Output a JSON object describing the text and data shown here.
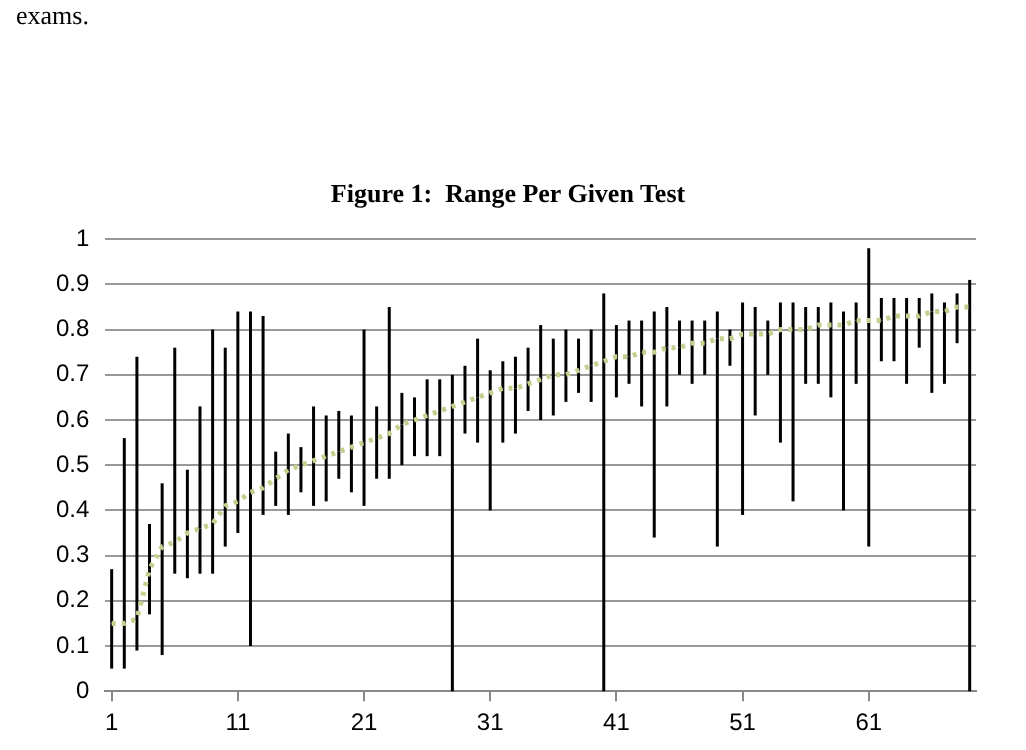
{
  "chart_data": {
    "type": "line",
    "title": "Figure 1:  Range Per Given Test",
    "annotations": [
      "exams."
    ],
    "categories": [
      "1",
      null,
      null,
      null,
      null,
      null,
      null,
      null,
      null,
      null,
      "11",
      null,
      null,
      null,
      null,
      null,
      null,
      null,
      null,
      null,
      "21",
      null,
      null,
      null,
      null,
      null,
      null,
      null,
      null,
      null,
      "31",
      null,
      null,
      null,
      null,
      null,
      null,
      null,
      null,
      null,
      "41",
      null,
      null,
      null,
      null,
      null,
      null,
      null,
      null,
      null,
      "51",
      null,
      null,
      null,
      null,
      null,
      null,
      null,
      null,
      null,
      "61",
      null,
      null,
      null,
      null,
      null,
      null,
      null,
      null
    ],
    "series": [
      {
        "color": "#c6cf8e",
        "line_style": "dotted",
        "values": [
          0.15,
          0.15,
          0.16,
          0.27,
          0.32,
          0.33,
          0.35,
          0.36,
          0.37,
          0.41,
          0.42,
          0.44,
          0.45,
          0.47,
          0.49,
          0.5,
          0.51,
          0.52,
          0.53,
          0.54,
          0.55,
          0.56,
          0.57,
          0.59,
          0.6,
          0.61,
          0.62,
          0.63,
          0.64,
          0.65,
          0.66,
          0.67,
          0.67,
          0.68,
          0.69,
          0.7,
          0.7,
          0.71,
          0.72,
          0.73,
          0.74,
          0.74,
          0.75,
          0.75,
          0.76,
          0.76,
          0.77,
          0.77,
          0.78,
          0.78,
          0.79,
          0.79,
          0.79,
          0.8,
          0.8,
          0.8,
          0.81,
          0.81,
          0.81,
          0.82,
          0.82,
          0.82,
          0.83,
          0.83,
          0.83,
          0.84,
          0.84,
          0.85,
          0.85
        ],
        "errors": [
          [
            0.05,
            0.27
          ],
          [
            0.05,
            0.56
          ],
          [
            0.09,
            0.74
          ],
          [
            0.17,
            0.37
          ],
          [
            0.08,
            0.46
          ],
          [
            0.26,
            0.76
          ],
          [
            0.25,
            0.49
          ],
          [
            0.26,
            0.63
          ],
          [
            0.26,
            0.8
          ],
          [
            0.32,
            0.76
          ],
          [
            0.35,
            0.84
          ],
          [
            0.1,
            0.84
          ],
          [
            0.39,
            0.83
          ],
          [
            0.41,
            0.53
          ],
          [
            0.39,
            0.57
          ],
          [
            0.44,
            0.54
          ],
          [
            0.41,
            0.63
          ],
          [
            0.42,
            0.61
          ],
          [
            0.47,
            0.62
          ],
          [
            0.44,
            0.61
          ],
          [
            0.41,
            0.8
          ],
          [
            0.47,
            0.63
          ],
          [
            0.47,
            0.85
          ],
          [
            0.5,
            0.66
          ],
          [
            0.52,
            0.65
          ],
          [
            0.52,
            0.69
          ],
          [
            0.52,
            0.69
          ],
          [
            0,
            0.7
          ],
          [
            0.57,
            0.72
          ],
          [
            0.55,
            0.78
          ],
          [
            0.4,
            0.71
          ],
          [
            0.55,
            0.73
          ],
          [
            0.57,
            0.74
          ],
          [
            0.62,
            0.76
          ],
          [
            0.6,
            0.81
          ],
          [
            0.61,
            0.78
          ],
          [
            0.64,
            0.8
          ],
          [
            0.66,
            0.78
          ],
          [
            0.64,
            0.8
          ],
          [
            0,
            0.88
          ],
          [
            0.65,
            0.81
          ],
          [
            0.68,
            0.82
          ],
          [
            0.63,
            0.82
          ],
          [
            0.34,
            0.84
          ],
          [
            0.63,
            0.85
          ],
          [
            0.7,
            0.82
          ],
          [
            0.68,
            0.82
          ],
          [
            0.7,
            0.82
          ],
          [
            0.32,
            0.84
          ],
          [
            0.72,
            0.8
          ],
          [
            0.39,
            0.86
          ],
          [
            0.61,
            0.85
          ],
          [
            0.7,
            0.82
          ],
          [
            0.55,
            0.86
          ],
          [
            0.42,
            0.86
          ],
          [
            0.68,
            0.85
          ],
          [
            0.68,
            0.85
          ],
          [
            0.65,
            0.86
          ],
          [
            0.4,
            0.84
          ],
          [
            0.68,
            0.86
          ],
          [
            0.32,
            0.98
          ],
          [
            0.73,
            0.87
          ],
          [
            0.73,
            0.87
          ],
          [
            0.68,
            0.87
          ],
          [
            0.76,
            0.87
          ],
          [
            0.66,
            0.88
          ],
          [
            0.68,
            0.86
          ],
          [
            0.77,
            0.88
          ],
          [
            0,
            0.91
          ]
        ]
      }
    ],
    "ylim": [
      0,
      1
    ],
    "yticks": [
      0,
      0.1,
      0.2,
      0.3,
      0.4,
      0.5,
      0.6,
      0.7,
      0.8,
      0.9,
      1
    ],
    "grid": "y",
    "legend": false,
    "marker": "none"
  }
}
